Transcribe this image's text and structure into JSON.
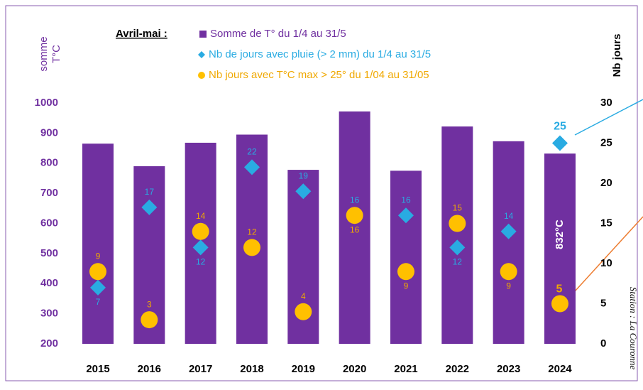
{
  "chart_data": {
    "type": "bar",
    "legend_title": "Avril-mai :",
    "y_label": [
      "somme",
      "T°C"
    ],
    "y2_label": "Nb jours",
    "annotation": "Station : La Couronne",
    "categories": [
      "2015",
      "2016",
      "2017",
      "2018",
      "2019",
      "2020",
      "2021",
      "2022",
      "2023",
      "2024"
    ],
    "series": [
      {
        "name": "Somme de T° du 1/4 au 31/5",
        "type": "bar",
        "color": "#7030a0",
        "values": [
          865,
          790,
          868,
          895,
          778,
          972,
          775,
          922,
          873,
          832
        ],
        "value_labels": [
          null,
          null,
          null,
          null,
          null,
          null,
          null,
          null,
          null,
          "832°C"
        ]
      },
      {
        "name": "Nb de jours avec pluie (> 2 mm) du 1/4 au 31/5",
        "type": "scatter",
        "marker": "diamond",
        "axis": "y2",
        "color": "#29abe2",
        "values": [
          7,
          17,
          12,
          22,
          19,
          16,
          16,
          12,
          14,
          25
        ]
      },
      {
        "name": "Nb jours avec T°C max > 25° du 1/04 au 31/05",
        "type": "scatter",
        "marker": "circle",
        "axis": "y2",
        "color": "#ffc000",
        "values": [
          9,
          3,
          14,
          12,
          4,
          16,
          9,
          15,
          9,
          5
        ]
      }
    ],
    "ylim": [
      200,
      1000
    ],
    "yticks": [
      200,
      300,
      400,
      500,
      600,
      700,
      800,
      900,
      1000
    ],
    "y2lim": [
      0,
      30
    ],
    "y2ticks": [
      0,
      5,
      10,
      15,
      20,
      25,
      30
    ]
  }
}
